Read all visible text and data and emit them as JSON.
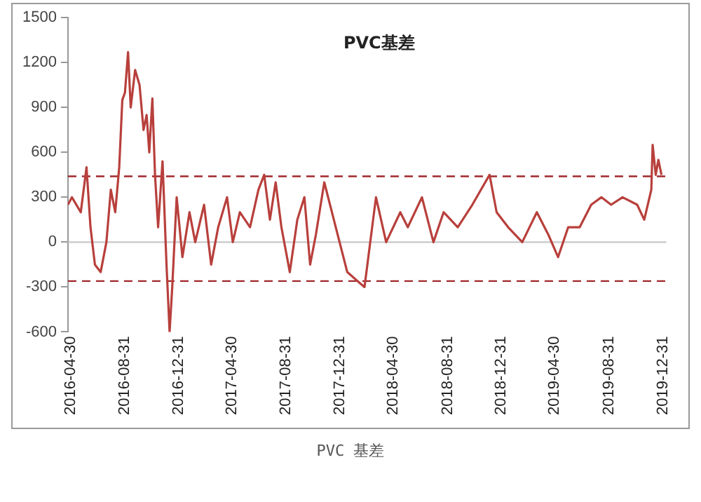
{
  "chart_data": {
    "type": "line",
    "title": "PVC基差",
    "annotations": [
      "PVC 基差"
    ],
    "x": [
      "2016-04-24",
      "2016-05-03",
      "2016-05-23",
      "2016-06-05",
      "2016-06-14",
      "2016-06-24",
      "2016-07-07",
      "2016-07-20",
      "2016-07-30",
      "2016-08-09",
      "2016-08-18",
      "2016-08-25",
      "2016-08-31",
      "2016-09-07",
      "2016-09-13",
      "2016-09-23",
      "2016-10-03",
      "2016-10-12",
      "2016-10-19",
      "2016-10-25",
      "2016-11-01",
      "2016-11-07",
      "2016-11-14",
      "2016-11-24",
      "2016-12-03",
      "2016-12-10",
      "2016-12-16",
      "2016-12-26",
      "2017-01-08",
      "2017-01-24",
      "2017-02-06",
      "2017-02-26",
      "2017-03-14",
      "2017-03-30",
      "2017-04-19",
      "2017-05-02",
      "2017-05-18",
      "2017-06-10",
      "2017-06-29",
      "2017-07-12",
      "2017-07-25",
      "2017-08-07",
      "2017-08-20",
      "2017-09-08",
      "2017-09-25",
      "2017-10-11",
      "2017-10-24",
      "2017-11-06",
      "2017-11-25",
      "2017-12-21",
      "2018-01-16",
      "2018-02-24",
      "2018-03-22",
      "2018-04-14",
      "2018-05-16",
      "2018-06-02",
      "2018-07-04",
      "2018-07-30",
      "2018-08-22",
      "2018-09-23",
      "2018-10-26",
      "2018-12-04",
      "2018-12-20",
      "2019-01-15",
      "2019-02-16",
      "2019-03-21",
      "2019-04-16",
      "2019-05-08",
      "2019-05-31",
      "2019-06-26",
      "2019-07-22",
      "2019-08-14",
      "2019-09-05",
      "2019-10-01",
      "2019-11-03",
      "2019-11-19",
      "2019-12-05",
      "2019-12-08",
      "2019-12-15",
      "2019-12-21",
      "2019-12-28"
    ],
    "series": [
      {
        "color": "#b8403c",
        "values": [
          250,
          300,
          200,
          500,
          100,
          -150,
          -200,
          0,
          350,
          200,
          500,
          950,
          1000,
          1270,
          900,
          1150,
          1050,
          750,
          850,
          600,
          960,
          450,
          100,
          540,
          -150,
          -600,
          -300,
          300,
          -100,
          200,
          0,
          250,
          -150,
          100,
          300,
          0,
          200,
          100,
          350,
          450,
          150,
          400,
          100,
          -200,
          150,
          300,
          -150,
          50,
          400,
          100,
          -200,
          -300,
          300,
          0,
          200,
          100,
          300,
          0,
          200,
          100,
          250,
          450,
          200,
          100,
          0,
          200,
          50,
          -100,
          100,
          100,
          250,
          300,
          250,
          300,
          250,
          150,
          350,
          650,
          450,
          550,
          450
        ]
      }
    ],
    "xlim": [
      "2016-04-24",
      "2020-01-08"
    ],
    "xticks": [
      "2016-04-30",
      "2016-08-31",
      "2016-12-31",
      "2017-04-30",
      "2017-08-31",
      "2017-12-31",
      "2018-04-30",
      "2018-08-31",
      "2018-12-31",
      "2019-04-30",
      "2019-08-31",
      "2019-12-31"
    ],
    "ylim": [
      -600,
      1500
    ],
    "yticks": [
      -600,
      -300,
      0,
      300,
      600,
      900,
      1200,
      1500
    ],
    "ref_lines": [
      {
        "axis": "y",
        "value": 440,
        "color": "#a0282c",
        "line_style": "dashed"
      },
      {
        "axis": "y",
        "value": -260,
        "color": "#a0282c",
        "line_style": "dashed"
      },
      {
        "axis": "y",
        "value": 0,
        "color": "#c8c8c8",
        "line_style": "solid"
      }
    ],
    "grid": false,
    "legend": false,
    "marker": "none",
    "line_style": "solid"
  }
}
